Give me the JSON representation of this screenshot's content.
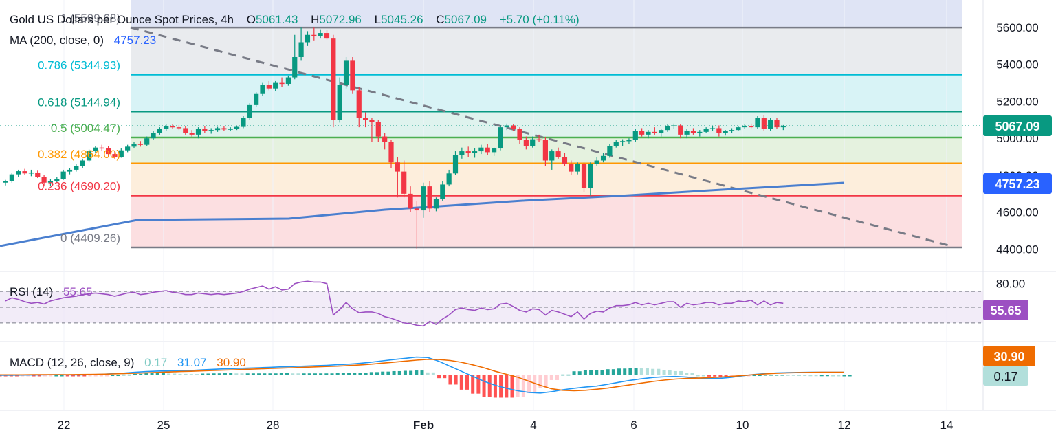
{
  "colors": {
    "up": "#089981",
    "down": "#f23645",
    "ma": "#4a7fcf",
    "rsi": "#9c4fc2",
    "macd_line": "#2196f3",
    "signal_line": "#ef6c00",
    "trend": "#787b86",
    "price_tag": "#089981",
    "ma_tag": "#2962ff",
    "rsi_tag": "#9c4fc2",
    "signal_tag": "#ef6c00",
    "hist_tag": "#b2dfdb"
  },
  "header": {
    "title": "Gold US Dollars per Ounce Spot Prices, 4h",
    "o_label": "O",
    "o_value": "5061.43",
    "h_label": "H",
    "h_value": "5072.96",
    "l_label": "L",
    "l_value": "5045.26",
    "c_label": "C",
    "c_value": "5067.09",
    "change": "+5.70 (+0.11%)",
    "ma_label": "MA (200, close, 0)",
    "ma_value": "4757.23",
    "rsi_label": "RSI (14)",
    "rsi_value": "55.65",
    "macd_label": "MACD (12, 26, close, 9)",
    "macd_hist": "0.17",
    "macd_value": "31.07",
    "macd_signal": "30.90"
  },
  "price_axis_labels": [
    "5600.00",
    "5400.00",
    "5200.00",
    "5000.00",
    "4800.00",
    "4600.00",
    "4400.00"
  ],
  "rsi_axis_labels": [
    "80.00"
  ],
  "x_axis_labels": [
    "22",
    "25",
    "28",
    "Feb",
    "4",
    "6",
    "10",
    "12",
    "14"
  ],
  "fib_levels": [
    {
      "label": "1 (5599.68)",
      "price": 5599.68,
      "color": "#787b86",
      "fill": "#dfe4f5",
      "text": "#787b86"
    },
    {
      "label": "0.786 (5344.93)",
      "price": 5344.93,
      "color": "#00bcd4",
      "fill": "#e9ebee",
      "text": "#00bcd4"
    },
    {
      "label": "0.618 (5144.94)",
      "price": 5144.94,
      "color": "#089981",
      "fill": "#d8f3f6",
      "text": "#089981"
    },
    {
      "label": "0.5 (5004.47)",
      "price": 5004.47,
      "color": "#4caf50",
      "fill": "#dff3ee",
      "text": "#4caf50"
    },
    {
      "label": "0.382 (4864.00)",
      "price": 4864.0,
      "color": "#ff9800",
      "fill": "#e5f2df",
      "text": "#ff9800"
    },
    {
      "label": "0.236 (4690.20)",
      "price": 4690.2,
      "color": "#f23645",
      "fill": "#fdeedc",
      "text": "#f23645"
    },
    {
      "label": "0 (4409.26)",
      "price": 4409.26,
      "color": "#787b86",
      "fill": "#fcdfe1",
      "text": "#787b86"
    }
  ],
  "price_tags": {
    "close": "5067.09",
    "ma": "4757.23",
    "rsi": "55.65",
    "signal": "30.90",
    "hist": "0.17"
  },
  "chart_data": {
    "type": "candlestick",
    "title": "Gold US Dollars per Ounce Spot Prices, 4h",
    "ylim": [
      4380,
      5680
    ],
    "candles": [
      {
        "o": 4760,
        "h": 4775,
        "l": 4745,
        "c": 4770
      },
      {
        "o": 4770,
        "h": 4815,
        "l": 4760,
        "c": 4805
      },
      {
        "o": 4805,
        "h": 4830,
        "l": 4790,
        "c": 4822
      },
      {
        "o": 4822,
        "h": 4835,
        "l": 4800,
        "c": 4810
      },
      {
        "o": 4810,
        "h": 4830,
        "l": 4795,
        "c": 4815
      },
      {
        "o": 4815,
        "h": 4825,
        "l": 4785,
        "c": 4790
      },
      {
        "o": 4790,
        "h": 4800,
        "l": 4740,
        "c": 4760
      },
      {
        "o": 4760,
        "h": 4780,
        "l": 4740,
        "c": 4770
      },
      {
        "o": 4770,
        "h": 4790,
        "l": 4760,
        "c": 4780
      },
      {
        "o": 4780,
        "h": 4830,
        "l": 4775,
        "c": 4820
      },
      {
        "o": 4820,
        "h": 4840,
        "l": 4805,
        "c": 4830
      },
      {
        "o": 4830,
        "h": 4860,
        "l": 4820,
        "c": 4850
      },
      {
        "o": 4850,
        "h": 4890,
        "l": 4840,
        "c": 4880
      },
      {
        "o": 4880,
        "h": 4940,
        "l": 4870,
        "c": 4930
      },
      {
        "o": 4930,
        "h": 4960,
        "l": 4920,
        "c": 4950
      },
      {
        "o": 4950,
        "h": 4965,
        "l": 4930,
        "c": 4945
      },
      {
        "o": 4945,
        "h": 4960,
        "l": 4900,
        "c": 4915
      },
      {
        "o": 4915,
        "h": 4930,
        "l": 4890,
        "c": 4900
      },
      {
        "o": 4900,
        "h": 4945,
        "l": 4895,
        "c": 4935
      },
      {
        "o": 4935,
        "h": 4965,
        "l": 4925,
        "c": 4955
      },
      {
        "o": 4955,
        "h": 4980,
        "l": 4945,
        "c": 4970
      },
      {
        "o": 4970,
        "h": 4985,
        "l": 4955,
        "c": 4965
      },
      {
        "o": 4965,
        "h": 5010,
        "l": 4960,
        "c": 5000
      },
      {
        "o": 5000,
        "h": 5040,
        "l": 4990,
        "c": 5030
      },
      {
        "o": 5030,
        "h": 5060,
        "l": 5020,
        "c": 5050
      },
      {
        "o": 5050,
        "h": 5075,
        "l": 5040,
        "c": 5065
      },
      {
        "o": 5065,
        "h": 5075,
        "l": 5050,
        "c": 5060
      },
      {
        "o": 5060,
        "h": 5072,
        "l": 5045,
        "c": 5055
      },
      {
        "o": 5055,
        "h": 5068,
        "l": 5020,
        "c": 5030
      },
      {
        "o": 5030,
        "h": 5045,
        "l": 5010,
        "c": 5020
      },
      {
        "o": 5020,
        "h": 5060,
        "l": 5000,
        "c": 5050
      },
      {
        "o": 5050,
        "h": 5065,
        "l": 5030,
        "c": 5040
      },
      {
        "o": 5040,
        "h": 5055,
        "l": 5025,
        "c": 5045
      },
      {
        "o": 5045,
        "h": 5062,
        "l": 5035,
        "c": 5055
      },
      {
        "o": 5055,
        "h": 5065,
        "l": 5040,
        "c": 5048
      },
      {
        "o": 5048,
        "h": 5060,
        "l": 5038,
        "c": 5052
      },
      {
        "o": 5052,
        "h": 5068,
        "l": 5045,
        "c": 5062
      },
      {
        "o": 5062,
        "h": 5120,
        "l": 5055,
        "c": 5110
      },
      {
        "o": 5110,
        "h": 5190,
        "l": 5100,
        "c": 5180
      },
      {
        "o": 5180,
        "h": 5250,
        "l": 5170,
        "c": 5240
      },
      {
        "o": 5240,
        "h": 5300,
        "l": 5230,
        "c": 5290
      },
      {
        "o": 5290,
        "h": 5310,
        "l": 5260,
        "c": 5270
      },
      {
        "o": 5270,
        "h": 5310,
        "l": 5255,
        "c": 5300
      },
      {
        "o": 5300,
        "h": 5330,
        "l": 5280,
        "c": 5295
      },
      {
        "o": 5295,
        "h": 5340,
        "l": 5285,
        "c": 5330
      },
      {
        "o": 5330,
        "h": 5560,
        "l": 5320,
        "c": 5440
      },
      {
        "o": 5440,
        "h": 5599,
        "l": 5420,
        "c": 5520
      },
      {
        "o": 5520,
        "h": 5580,
        "l": 5500,
        "c": 5560
      },
      {
        "o": 5560,
        "h": 5599,
        "l": 5530,
        "c": 5555
      },
      {
        "o": 5555,
        "h": 5590,
        "l": 5540,
        "c": 5570
      },
      {
        "o": 5570,
        "h": 5585,
        "l": 5535,
        "c": 5540
      },
      {
        "o": 5540,
        "h": 5560,
        "l": 5060,
        "c": 5100
      },
      {
        "o": 5100,
        "h": 5330,
        "l": 5085,
        "c": 5290
      },
      {
        "o": 5290,
        "h": 5440,
        "l": 5270,
        "c": 5420
      },
      {
        "o": 5420,
        "h": 5440,
        "l": 5240,
        "c": 5260
      },
      {
        "o": 5260,
        "h": 5280,
        "l": 5060,
        "c": 5110
      },
      {
        "o": 5110,
        "h": 5140,
        "l": 5060,
        "c": 5100
      },
      {
        "o": 5100,
        "h": 5110,
        "l": 4980,
        "c": 5090
      },
      {
        "o": 5090,
        "h": 5100,
        "l": 4980,
        "c": 5010
      },
      {
        "o": 5010,
        "h": 5030,
        "l": 4940,
        "c": 4980
      },
      {
        "o": 4980,
        "h": 4990,
        "l": 4840,
        "c": 4870
      },
      {
        "o": 4870,
        "h": 4900,
        "l": 4680,
        "c": 4820
      },
      {
        "o": 4820,
        "h": 4880,
        "l": 4680,
        "c": 4700
      },
      {
        "o": 4700,
        "h": 4740,
        "l": 4600,
        "c": 4620
      },
      {
        "o": 4620,
        "h": 4660,
        "l": 4400,
        "c": 4610
      },
      {
        "o": 4610,
        "h": 4760,
        "l": 4570,
        "c": 4740
      },
      {
        "o": 4740,
        "h": 4770,
        "l": 4600,
        "c": 4620
      },
      {
        "o": 4620,
        "h": 4680,
        "l": 4605,
        "c": 4670
      },
      {
        "o": 4670,
        "h": 4770,
        "l": 4660,
        "c": 4750
      },
      {
        "o": 4750,
        "h": 4830,
        "l": 4740,
        "c": 4810
      },
      {
        "o": 4810,
        "h": 4930,
        "l": 4800,
        "c": 4910
      },
      {
        "o": 4910,
        "h": 4950,
        "l": 4890,
        "c": 4930
      },
      {
        "o": 4930,
        "h": 4955,
        "l": 4900,
        "c": 4920
      },
      {
        "o": 4920,
        "h": 4945,
        "l": 4895,
        "c": 4930
      },
      {
        "o": 4930,
        "h": 4965,
        "l": 4915,
        "c": 4950
      },
      {
        "o": 4950,
        "h": 4970,
        "l": 4910,
        "c": 4925
      },
      {
        "o": 4925,
        "h": 4950,
        "l": 4905,
        "c": 4945
      },
      {
        "o": 4945,
        "h": 5070,
        "l": 4935,
        "c": 5060
      },
      {
        "o": 5060,
        "h": 5080,
        "l": 5045,
        "c": 5070
      },
      {
        "o": 5070,
        "h": 5075,
        "l": 5040,
        "c": 5050
      },
      {
        "o": 5050,
        "h": 5060,
        "l": 4970,
        "c": 4990
      },
      {
        "o": 4990,
        "h": 5010,
        "l": 4940,
        "c": 4960
      },
      {
        "o": 4960,
        "h": 5010,
        "l": 4950,
        "c": 4995
      },
      {
        "o": 4995,
        "h": 5020,
        "l": 4980,
        "c": 4990
      },
      {
        "o": 4990,
        "h": 5005,
        "l": 4850,
        "c": 4880
      },
      {
        "o": 4880,
        "h": 4940,
        "l": 4830,
        "c": 4930
      },
      {
        "o": 4930,
        "h": 4950,
        "l": 4890,
        "c": 4900
      },
      {
        "o": 4900,
        "h": 4920,
        "l": 4850,
        "c": 4860
      },
      {
        "o": 4860,
        "h": 4880,
        "l": 4800,
        "c": 4820
      },
      {
        "o": 4820,
        "h": 4870,
        "l": 4805,
        "c": 4860
      },
      {
        "o": 4860,
        "h": 4870,
        "l": 4710,
        "c": 4730
      },
      {
        "o": 4730,
        "h": 4870,
        "l": 4690,
        "c": 4860
      },
      {
        "o": 4860,
        "h": 4900,
        "l": 4850,
        "c": 4880
      },
      {
        "o": 4880,
        "h": 4920,
        "l": 4870,
        "c": 4905
      },
      {
        "o": 4905,
        "h": 4970,
        "l": 4895,
        "c": 4960
      },
      {
        "o": 4960,
        "h": 4990,
        "l": 4950,
        "c": 4980
      },
      {
        "o": 4980,
        "h": 4995,
        "l": 4960,
        "c": 4985
      },
      {
        "o": 4985,
        "h": 5000,
        "l": 4970,
        "c": 4990
      },
      {
        "o": 4990,
        "h": 5050,
        "l": 4980,
        "c": 5040
      },
      {
        "o": 5040,
        "h": 5055,
        "l": 5010,
        "c": 5020
      },
      {
        "o": 5020,
        "h": 5045,
        "l": 5000,
        "c": 5035
      },
      {
        "o": 5035,
        "h": 5060,
        "l": 5020,
        "c": 5030
      },
      {
        "o": 5030,
        "h": 5050,
        "l": 5010,
        "c": 5045
      },
      {
        "o": 5045,
        "h": 5075,
        "l": 5035,
        "c": 5065
      },
      {
        "o": 5065,
        "h": 5080,
        "l": 5050,
        "c": 5070
      },
      {
        "o": 5070,
        "h": 5075,
        "l": 5000,
        "c": 5020
      },
      {
        "o": 5020,
        "h": 5050,
        "l": 5000,
        "c": 5040
      },
      {
        "o": 5040,
        "h": 5055,
        "l": 5020,
        "c": 5030
      },
      {
        "o": 5030,
        "h": 5045,
        "l": 5010,
        "c": 5035
      },
      {
        "o": 5035,
        "h": 5060,
        "l": 5030,
        "c": 5050
      },
      {
        "o": 5050,
        "h": 5065,
        "l": 5040,
        "c": 5055
      },
      {
        "o": 5055,
        "h": 5070,
        "l": 5010,
        "c": 5030
      },
      {
        "o": 5030,
        "h": 5045,
        "l": 5015,
        "c": 5040
      },
      {
        "o": 5040,
        "h": 5055,
        "l": 5030,
        "c": 5045
      },
      {
        "o": 5045,
        "h": 5065,
        "l": 5040,
        "c": 5060
      },
      {
        "o": 5060,
        "h": 5075,
        "l": 5050,
        "c": 5068
      },
      {
        "o": 5068,
        "h": 5080,
        "l": 5055,
        "c": 5060
      },
      {
        "o": 5060,
        "h": 5120,
        "l": 5050,
        "c": 5110
      },
      {
        "o": 5110,
        "h": 5125,
        "l": 5040,
        "c": 5050
      },
      {
        "o": 5050,
        "h": 5110,
        "l": 5040,
        "c": 5100
      },
      {
        "o": 5100,
        "h": 5110,
        "l": 5050,
        "c": 5060
      },
      {
        "o": 5060,
        "h": 5072,
        "l": 5045,
        "c": 5067
      }
    ],
    "ma200": [
      {
        "i": 0,
        "v": 4358
      },
      {
        "i": 30,
        "v": 4440
      },
      {
        "i": 50,
        "v": 4540
      },
      {
        "i": 64,
        "v": 4615
      },
      {
        "i": 80,
        "v": 4660
      },
      {
        "i": 100,
        "v": 4700
      },
      {
        "i": 125,
        "v": 4757
      }
    ],
    "trendline": [
      {
        "i": 12,
        "v": 5600
      },
      {
        "i": 156,
        "v": 4420
      }
    ],
    "rsi": {
      "ylim": [
        10,
        90
      ],
      "levels": [
        70,
        50,
        30
      ],
      "values": [
        58,
        62,
        60,
        57,
        55,
        56,
        54,
        58,
        60,
        62,
        63,
        64,
        66,
        67,
        68,
        67,
        66,
        64,
        66,
        68,
        69,
        66,
        67,
        69,
        70,
        71,
        69,
        68,
        66,
        66,
        68,
        67,
        66,
        67,
        66,
        67,
        68,
        70,
        73,
        75,
        77,
        73,
        76,
        72,
        73,
        80,
        82,
        83,
        82,
        82,
        80,
        40,
        47,
        56,
        48,
        43,
        44,
        44,
        42,
        38,
        36,
        33,
        30,
        29,
        27,
        26,
        32,
        28,
        35,
        40,
        47,
        49,
        47,
        46,
        49,
        47,
        48,
        54,
        55,
        51,
        46,
        44,
        48,
        47,
        40,
        46,
        44,
        41,
        38,
        44,
        35,
        42,
        45,
        44,
        49,
        52,
        52,
        53,
        56,
        53,
        55,
        53,
        55,
        57,
        57,
        50,
        55,
        53,
        54,
        56,
        56,
        53,
        55,
        55,
        58,
        57,
        59,
        53,
        58,
        53,
        56,
        55
      ]
    },
    "macd": {
      "ylim": [
        -180,
        220
      ],
      "macd": [
        0,
        0,
        2,
        3,
        5,
        6,
        5,
        4,
        6,
        10,
        16,
        22,
        30,
        38,
        42,
        44,
        46,
        48,
        55,
        60,
        65,
        68,
        72,
        76,
        80,
        85,
        88,
        92,
        96,
        100,
        106,
        112,
        120,
        132,
        145,
        158,
        170,
        182,
        178,
        140,
        90,
        40,
        -10,
        -60,
        -100,
        -130,
        -155,
        -172,
        -178,
        -165,
        -145,
        -130,
        -118,
        -108,
        -90,
        -70,
        -50,
        -35,
        -22,
        -15,
        -12,
        -18,
        -28,
        -32,
        -30,
        -20,
        -5,
        8,
        18,
        24,
        27,
        29,
        30,
        31,
        31,
        31
      ],
      "signal": [
        5,
        5,
        5,
        6,
        6,
        6,
        7,
        8,
        9,
        11,
        14,
        17,
        21,
        25,
        29,
        33,
        37,
        40,
        44,
        48,
        52,
        56,
        60,
        64,
        68,
        72,
        76,
        80,
        84,
        88,
        92,
        98,
        104,
        112,
        122,
        132,
        142,
        152,
        160,
        158,
        148,
        130,
        105,
        75,
        40,
        10,
        -20,
        -60,
        -100,
        -135,
        -150,
        -155,
        -150,
        -140,
        -128,
        -112,
        -95,
        -78,
        -62,
        -48,
        -38,
        -32,
        -28,
        -24,
        -18,
        -10,
        -2,
        6,
        14,
        20,
        24,
        27,
        29,
        30,
        30.9,
        30.9
      ]
    }
  }
}
